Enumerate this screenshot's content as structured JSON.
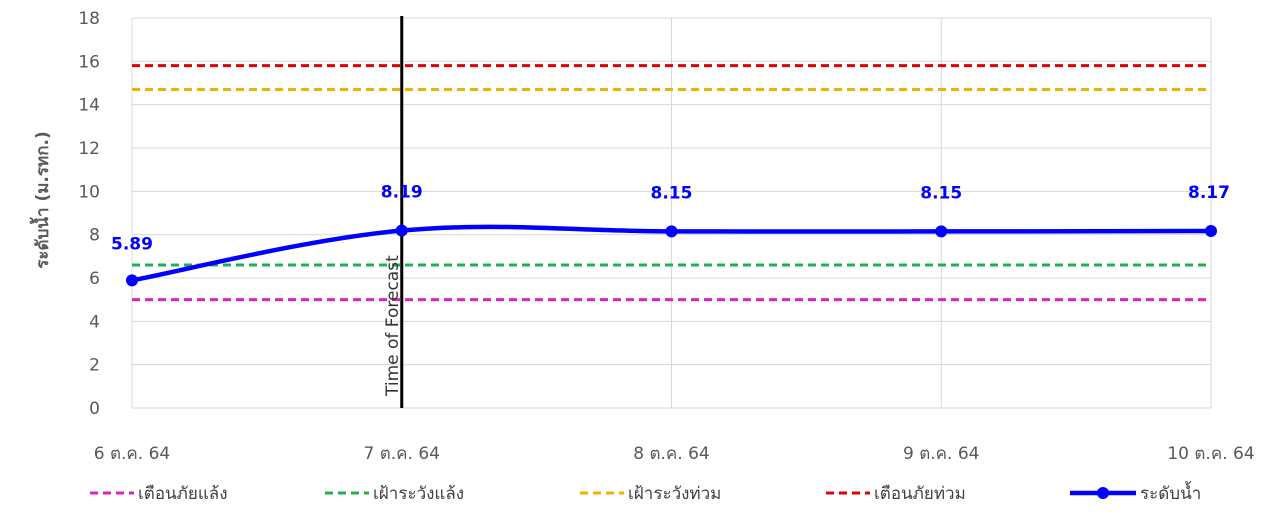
{
  "chart_data": {
    "type": "line",
    "ylabel": "ระดับน้ำ (ม.รทก.)",
    "ylim": [
      0,
      18
    ],
    "ytick_step": 2,
    "grid": "vertical-and-horizontal",
    "categories": [
      "6 ต.ค. 64",
      "7 ต.ค. 64",
      "8 ต.ค. 64",
      "9 ต.ค. 64",
      "10 ต.ค. 64"
    ],
    "legend_position": "bottom",
    "vertical_marker": {
      "label": "Time of Forecast",
      "at_category": "7 ต.ค. 64",
      "color": "#000000"
    },
    "series": [
      {
        "name": "เตือนภัยแล้ง",
        "style": "dashed",
        "color": "#e020c0",
        "values": [
          5.0,
          5.0,
          5.0,
          5.0,
          5.0
        ]
      },
      {
        "name": "เฝ้าระวังแล้ง",
        "style": "dashed",
        "color": "#20b050",
        "values": [
          6.6,
          6.6,
          6.6,
          6.6,
          6.6
        ]
      },
      {
        "name": "เฝ้าระวังท่วม",
        "style": "dashed",
        "color": "#f0b000",
        "values": [
          14.7,
          14.7,
          14.7,
          14.7,
          14.7
        ]
      },
      {
        "name": "เตือนภัยท่วม",
        "style": "dashed",
        "color": "#e00000",
        "values": [
          15.8,
          15.8,
          15.8,
          15.8,
          15.8
        ]
      },
      {
        "name": "ระดับน้ำ",
        "style": "solid-markers",
        "color": "#0000ff",
        "values": [
          5.89,
          8.19,
          8.15,
          8.15,
          8.17
        ],
        "data_labels": [
          "5.89",
          "8.19",
          "8.15",
          "8.15",
          "8.17"
        ]
      }
    ]
  }
}
